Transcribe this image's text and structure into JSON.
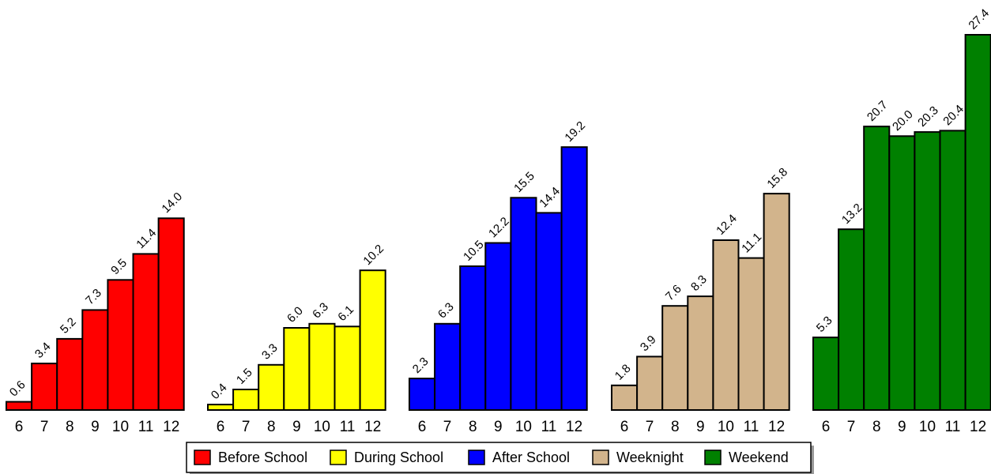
{
  "chart_data": {
    "type": "bar",
    "title": "",
    "xlabel": "",
    "ylabel": "",
    "ylim": [
      0,
      27.4
    ],
    "grid": false,
    "legend_position": "bottom",
    "groups": [
      {
        "name": "Before School",
        "color": "#ff0000",
        "categories": [
          "6",
          "7",
          "8",
          "9",
          "10",
          "11",
          "12"
        ],
        "values": [
          0.6,
          3.4,
          5.2,
          7.3,
          9.5,
          11.4,
          14.0
        ]
      },
      {
        "name": "During School",
        "color": "#ffff00",
        "categories": [
          "6",
          "7",
          "8",
          "9",
          "10",
          "11",
          "12"
        ],
        "values": [
          0.4,
          1.5,
          3.3,
          6.0,
          6.3,
          6.1,
          10.2
        ]
      },
      {
        "name": "After School",
        "color": "#0000ff",
        "categories": [
          "6",
          "7",
          "8",
          "9",
          "10",
          "11",
          "12"
        ],
        "values": [
          2.3,
          6.3,
          10.5,
          12.2,
          15.5,
          14.4,
          19.2
        ]
      },
      {
        "name": "Weeknight",
        "color": "#d2b48c",
        "categories": [
          "6",
          "7",
          "8",
          "9",
          "10",
          "11",
          "12"
        ],
        "values": [
          1.8,
          3.9,
          7.6,
          8.3,
          12.4,
          11.1,
          15.8
        ]
      },
      {
        "name": "Weekend",
        "color": "#008000",
        "categories": [
          "6",
          "7",
          "8",
          "9",
          "10",
          "11",
          "12"
        ],
        "values": [
          5.3,
          13.2,
          20.7,
          20.0,
          20.3,
          20.4,
          27.4
        ]
      }
    ]
  }
}
